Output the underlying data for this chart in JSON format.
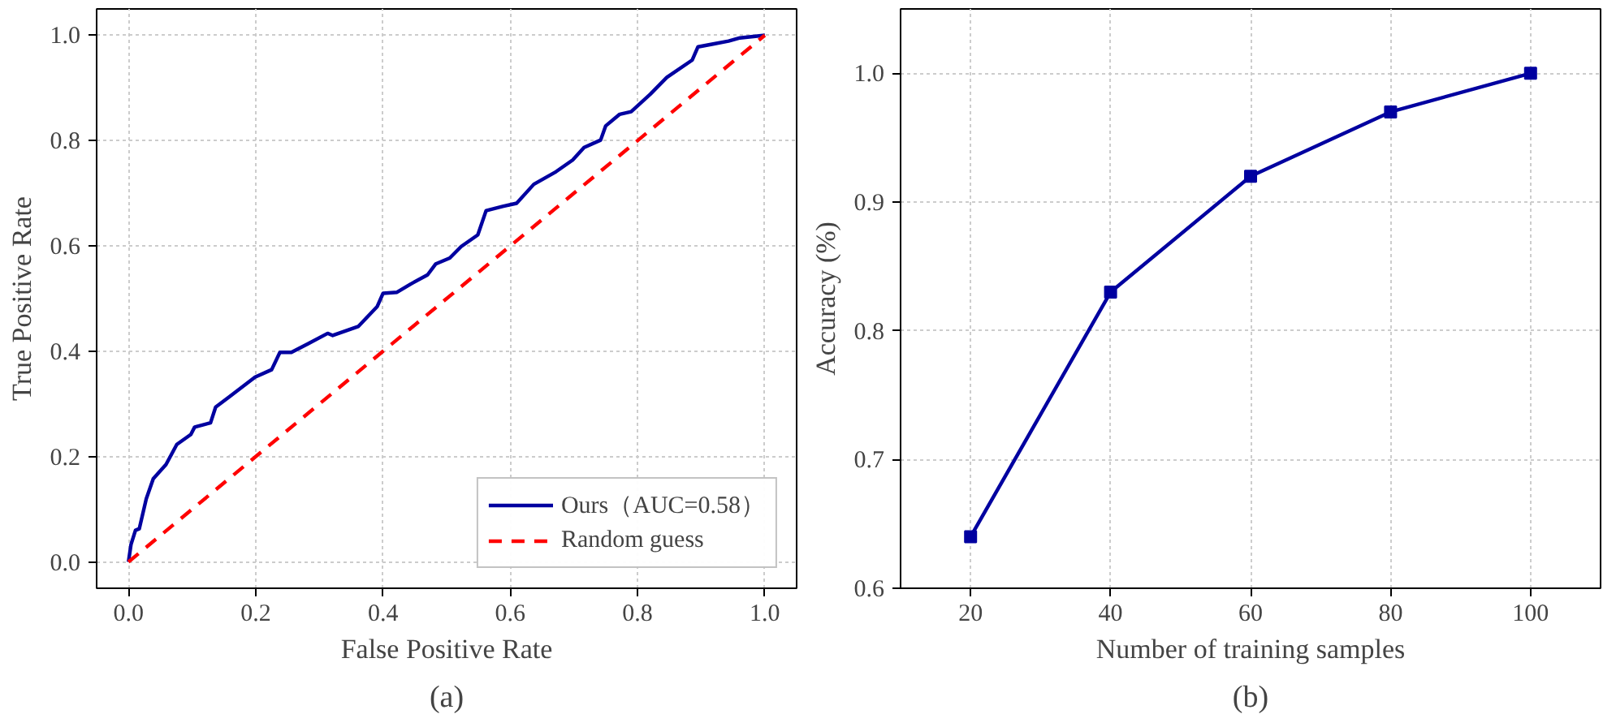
{
  "chart_data": [
    {
      "type": "line",
      "title": "(a)",
      "xlabel": "False Positive Rate",
      "ylabel": "True Positive Rate",
      "xlim": [
        -0.05,
        1.05
      ],
      "ylim": [
        -0.05,
        1.05
      ],
      "xticks": [
        {
          "value": 0,
          "label": "0.0"
        },
        0.2,
        0.4,
        0.6,
        0.8,
        {
          "value": 1,
          "label": "1.0"
        }
      ],
      "yticks": [
        {
          "value": 0,
          "label": "0.0"
        },
        0.2,
        0.4,
        0.6,
        0.8,
        {
          "value": 1,
          "label": "1.0"
        }
      ],
      "grid": true,
      "legend": "bottom right",
      "series": [
        {
          "name": "Ours（AUC=0.58）",
          "color": "#0000a0",
          "line_style": "solid",
          "x": [
            0,
            0.004,
            0.011,
            0.017,
            0.028,
            0.039,
            0.059,
            0.076,
            0.098,
            0.104,
            0.129,
            0.137,
            0.159,
            0.199,
            0.225,
            0.238,
            0.256,
            0.282,
            0.313,
            0.321,
            0.361,
            0.391,
            0.4,
            0.422,
            0.444,
            0.47,
            0.483,
            0.505,
            0.523,
            0.549,
            0.562,
            0.588,
            0.61,
            0.637,
            0.672,
            0.698,
            0.716,
            0.742,
            0.75,
            0.772,
            0.79,
            0.82,
            0.846,
            0.886,
            0.895,
            0.917,
            0.943,
            0.961,
            1
          ],
          "values": [
            0,
            0.033,
            0.06,
            0.063,
            0.12,
            0.158,
            0.185,
            0.223,
            0.242,
            0.256,
            0.264,
            0.294,
            0.314,
            0.351,
            0.365,
            0.398,
            0.398,
            0.414,
            0.434,
            0.43,
            0.447,
            0.485,
            0.51,
            0.512,
            0.528,
            0.545,
            0.566,
            0.577,
            0.599,
            0.621,
            0.667,
            0.675,
            0.681,
            0.717,
            0.741,
            0.763,
            0.787,
            0.801,
            0.828,
            0.85,
            0.855,
            0.888,
            0.92,
            0.953,
            0.978,
            0.983,
            0.989,
            0.995,
            1
          ]
        },
        {
          "name": "Random guess",
          "color": "#ff0000",
          "line_style": "dashed",
          "x": [
            0,
            1
          ],
          "values": [
            0,
            1
          ]
        }
      ]
    },
    {
      "type": "line",
      "title": "(b)",
      "xlabel": "Number of training samples",
      "ylabel": "Accuracy (%)",
      "x": [
        20,
        40,
        60,
        80,
        100
      ],
      "xlim": [
        10,
        110
      ],
      "ylim": [
        0.6,
        1.05
      ],
      "xticks": [
        20,
        40,
        60,
        80,
        100
      ],
      "yticks": [
        {
          "value": 0.6,
          "label": "0.6"
        },
        0.7,
        0.8,
        0.9,
        {
          "value": 1,
          "label": "1.0"
        }
      ],
      "grid": true,
      "marker": "square",
      "series": [
        {
          "color": "#0000a0",
          "values": [
            0.64,
            0.83,
            0.92,
            0.97,
            1.0
          ]
        }
      ]
    }
  ]
}
